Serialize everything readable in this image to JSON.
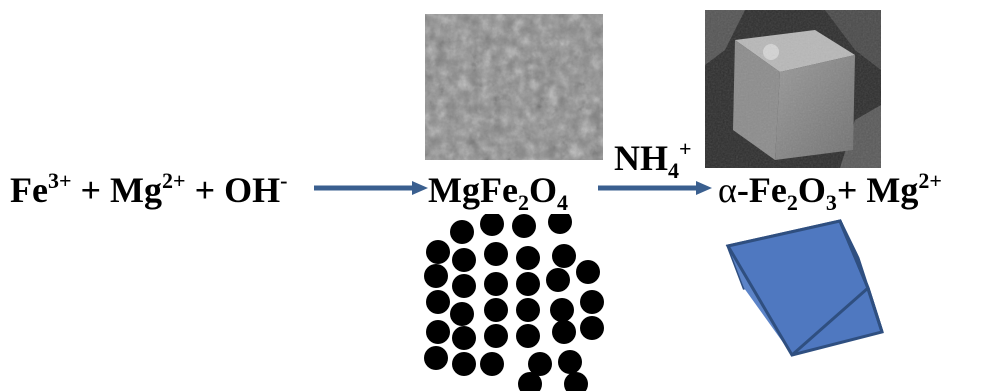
{
  "reactants": {
    "fe": "Fe",
    "fe_charge": "3+",
    "plus1": "+",
    "mg": "Mg",
    "mg_charge": "2+",
    "plus2": "+",
    "oh": "OH",
    "oh_charge": "-"
  },
  "intermediate": {
    "mgfe": "MgFe",
    "sub2": "2",
    "o": "O",
    "sub4": "4"
  },
  "reagent": {
    "nh": "NH",
    "sub4": "4",
    "charge": "+"
  },
  "products": {
    "alpha": "α",
    "fe": "-Fe",
    "sub2": "2",
    "o": "O",
    "sub3": "3",
    "plus": "+",
    "mg": "Mg",
    "mg_charge": "2+"
  },
  "colors": {
    "arrow": "#3a5f8f",
    "cube_front": "#4f78c0",
    "cube_side": "#6f94d4",
    "cube_top": "#88a8de",
    "cube_edge": "#2f4f80",
    "particle": "#000000"
  }
}
